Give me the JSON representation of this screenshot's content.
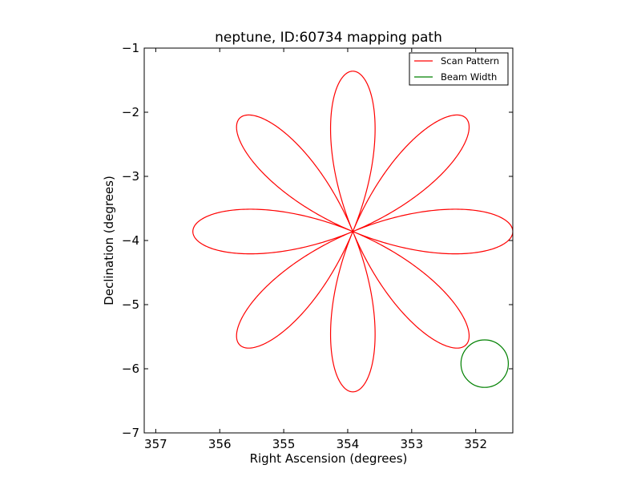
{
  "chart_data": {
    "type": "line",
    "title": "neptune, ID:60734 mapping path",
    "xlabel": "Right Ascension (degrees)",
    "ylabel": "Declination (degrees)",
    "xlim": [
      357.18,
      351.42
    ],
    "ylim": [
      -7,
      -1
    ],
    "x_ticks": [
      357,
      356,
      355,
      354,
      353,
      352
    ],
    "x_tick_labels": [
      "357",
      "356",
      "355",
      "354",
      "353",
      "352"
    ],
    "y_ticks": [
      -1,
      -2,
      -3,
      -4,
      -5,
      -6,
      -7
    ],
    "y_tick_labels": [
      "−1",
      "−2",
      "−3",
      "−4",
      "−5",
      "−6",
      "−7"
    ],
    "legend": {
      "placement": "top-right",
      "entries": [
        {
          "label": "Scan Pattern",
          "color": "#ff0000"
        },
        {
          "label": "Beam Width",
          "color": "#008000"
        }
      ]
    },
    "series": [
      {
        "name": "Scan Pattern",
        "color": "#ff0000",
        "pattern": "rose",
        "center_ra": 353.92,
        "center_dec": -3.86,
        "petals": 8,
        "ra_radius_deg": 2.5,
        "dec_radius_deg": 2.5,
        "vertical_petal_half_width_deg": 0.35,
        "horizontal_petal_half_height_deg": 0.35
      },
      {
        "name": "Beam Width",
        "color": "#008000",
        "shape": "circle",
        "center_ra": 351.86,
        "center_dec": -5.92,
        "radius_ra_deg": 0.37,
        "radius_dec_deg": 0.37
      }
    ]
  }
}
